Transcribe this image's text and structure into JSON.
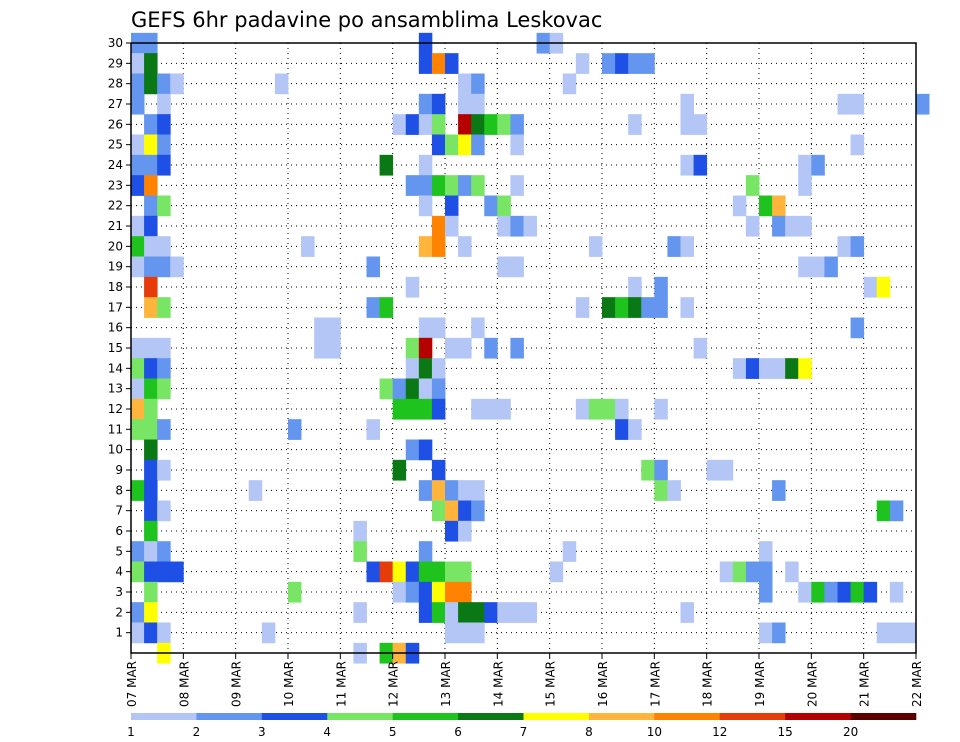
{
  "chart_data": {
    "type": "heatmap",
    "title": "GEFS 6hr padavine po ansamblima Leskovac",
    "x_tick_labels": [
      "07 MAR",
      "08 MAR",
      "09 MAR",
      "10 MAR",
      "11 MAR",
      "12 MAR",
      "13 MAR",
      "14 MAR",
      "15 MAR",
      "16 MAR",
      "17 MAR",
      "18 MAR",
      "19 MAR",
      "20 MAR",
      "21 MAR",
      "22 MAR"
    ],
    "x_range": [
      "07 MAR",
      "22 MAR"
    ],
    "y_tick_labels": [
      "1",
      "2",
      "3",
      "4",
      "5",
      "6",
      "7",
      "8",
      "9",
      "10",
      "11",
      "12",
      "13",
      "14",
      "15",
      "16",
      "17",
      "18",
      "19",
      "20",
      "21",
      "22",
      "23",
      "24",
      "25",
      "26",
      "27",
      "28",
      "29",
      "30"
    ],
    "y_range": [
      0,
      30
    ],
    "steps_per_day": 4,
    "grid": true,
    "colorbar": {
      "placement": "bottom",
      "labels": [
        "1",
        "2",
        "3",
        "4",
        "5",
        "6",
        "7",
        "8",
        "10",
        "12",
        "15",
        "20"
      ],
      "colors": [
        "#b3c6f5",
        "#6496f0",
        "#1e50e6",
        "#78e664",
        "#1ec31e",
        "#0a7814",
        "#ffff00",
        "#ffb43c",
        "#ff8200",
        "#e63c0a",
        "#b40000",
        "#5a0000"
      ]
    },
    "cells": [
      [
        0,
        30,
        2
      ],
      [
        1,
        30,
        2
      ],
      [
        22,
        30,
        3
      ],
      [
        31,
        30,
        2
      ],
      [
        32,
        30,
        1
      ],
      [
        0,
        29,
        1
      ],
      [
        1,
        29,
        6
      ],
      [
        22,
        29,
        3
      ],
      [
        23,
        29,
        9
      ],
      [
        24,
        29,
        3
      ],
      [
        34,
        29,
        1
      ],
      [
        36,
        29,
        2
      ],
      [
        37,
        29,
        3
      ],
      [
        38,
        29,
        2
      ],
      [
        39,
        29,
        2
      ],
      [
        0,
        28,
        2
      ],
      [
        1,
        28,
        6
      ],
      [
        2,
        28,
        2
      ],
      [
        3,
        28,
        1
      ],
      [
        11,
        28,
        1
      ],
      [
        25,
        28,
        1
      ],
      [
        26,
        28,
        2
      ],
      [
        33,
        28,
        1
      ],
      [
        0,
        27,
        2
      ],
      [
        2,
        27,
        1
      ],
      [
        22,
        27,
        2
      ],
      [
        23,
        27,
        3
      ],
      [
        25,
        27,
        1
      ],
      [
        26,
        27,
        1
      ],
      [
        42,
        27,
        1
      ],
      [
        54,
        27,
        1
      ],
      [
        55,
        27,
        1
      ],
      [
        60,
        27,
        2
      ],
      [
        1,
        26,
        2
      ],
      [
        2,
        26,
        3
      ],
      [
        20,
        26,
        1
      ],
      [
        21,
        26,
        3
      ],
      [
        22,
        26,
        1
      ],
      [
        23,
        26,
        4
      ],
      [
        25,
        26,
        11
      ],
      [
        26,
        26,
        6
      ],
      [
        27,
        26,
        5
      ],
      [
        28,
        26,
        4
      ],
      [
        29,
        26,
        2
      ],
      [
        38,
        26,
        1
      ],
      [
        42,
        26,
        1
      ],
      [
        43,
        26,
        1
      ],
      [
        0,
        25,
        1
      ],
      [
        1,
        25,
        7
      ],
      [
        2,
        25,
        2
      ],
      [
        23,
        25,
        3
      ],
      [
        24,
        25,
        4
      ],
      [
        25,
        25,
        7
      ],
      [
        26,
        25,
        2
      ],
      [
        29,
        25,
        1
      ],
      [
        55,
        25,
        1
      ],
      [
        0,
        24,
        2
      ],
      [
        1,
        24,
        2
      ],
      [
        2,
        24,
        3
      ],
      [
        19,
        24,
        6
      ],
      [
        22,
        24,
        1
      ],
      [
        42,
        24,
        1
      ],
      [
        43,
        24,
        3
      ],
      [
        51,
        24,
        1
      ],
      [
        52,
        24,
        2
      ],
      [
        0,
        23,
        3
      ],
      [
        1,
        23,
        9
      ],
      [
        21,
        23,
        2
      ],
      [
        22,
        23,
        2
      ],
      [
        23,
        23,
        5
      ],
      [
        24,
        23,
        4
      ],
      [
        25,
        23,
        2
      ],
      [
        26,
        23,
        4
      ],
      [
        29,
        23,
        1
      ],
      [
        47,
        23,
        4
      ],
      [
        51,
        23,
        1
      ],
      [
        1,
        22,
        2
      ],
      [
        2,
        22,
        4
      ],
      [
        22,
        22,
        1
      ],
      [
        24,
        22,
        3
      ],
      [
        27,
        22,
        2
      ],
      [
        28,
        22,
        4
      ],
      [
        46,
        22,
        1
      ],
      [
        48,
        22,
        5
      ],
      [
        49,
        22,
        8
      ],
      [
        0,
        21,
        1
      ],
      [
        1,
        21,
        3
      ],
      [
        23,
        21,
        9
      ],
      [
        24,
        21,
        1
      ],
      [
        28,
        21,
        1
      ],
      [
        29,
        21,
        2
      ],
      [
        30,
        21,
        1
      ],
      [
        47,
        21,
        1
      ],
      [
        49,
        21,
        2
      ],
      [
        50,
        21,
        1
      ],
      [
        51,
        21,
        1
      ],
      [
        0,
        20,
        5
      ],
      [
        1,
        20,
        1
      ],
      [
        2,
        20,
        1
      ],
      [
        13,
        20,
        1
      ],
      [
        22,
        20,
        8
      ],
      [
        23,
        20,
        9
      ],
      [
        25,
        20,
        1
      ],
      [
        35,
        20,
        1
      ],
      [
        41,
        20,
        2
      ],
      [
        42,
        20,
        1
      ],
      [
        54,
        20,
        1
      ],
      [
        55,
        20,
        2
      ],
      [
        0,
        19,
        1
      ],
      [
        1,
        19,
        2
      ],
      [
        2,
        19,
        2
      ],
      [
        3,
        19,
        1
      ],
      [
        18,
        19,
        2
      ],
      [
        28,
        19,
        1
      ],
      [
        29,
        19,
        1
      ],
      [
        51,
        19,
        1
      ],
      [
        52,
        19,
        1
      ],
      [
        53,
        19,
        2
      ],
      [
        1,
        18,
        10
      ],
      [
        21,
        18,
        1
      ],
      [
        38,
        18,
        1
      ],
      [
        40,
        18,
        2
      ],
      [
        56,
        18,
        1
      ],
      [
        57,
        18,
        7
      ],
      [
        1,
        17,
        8
      ],
      [
        2,
        17,
        4
      ],
      [
        18,
        17,
        2
      ],
      [
        19,
        17,
        5
      ],
      [
        34,
        17,
        1
      ],
      [
        36,
        17,
        6
      ],
      [
        37,
        17,
        5
      ],
      [
        38,
        17,
        6
      ],
      [
        39,
        17,
        2
      ],
      [
        40,
        17,
        2
      ],
      [
        42,
        17,
        1
      ],
      [
        14,
        16,
        1
      ],
      [
        15,
        16,
        1
      ],
      [
        22,
        16,
        1
      ],
      [
        23,
        16,
        1
      ],
      [
        26,
        16,
        1
      ],
      [
        55,
        16,
        2
      ],
      [
        0,
        15,
        1
      ],
      [
        1,
        15,
        1
      ],
      [
        2,
        15,
        1
      ],
      [
        14,
        15,
        1
      ],
      [
        15,
        15,
        1
      ],
      [
        21,
        15,
        4
      ],
      [
        22,
        15,
        11
      ],
      [
        24,
        15,
        1
      ],
      [
        25,
        15,
        1
      ],
      [
        27,
        15,
        2
      ],
      [
        29,
        15,
        2
      ],
      [
        43,
        15,
        1
      ],
      [
        0,
        14,
        4
      ],
      [
        1,
        14,
        3
      ],
      [
        2,
        14,
        2
      ],
      [
        21,
        14,
        1
      ],
      [
        22,
        14,
        6
      ],
      [
        23,
        14,
        1
      ],
      [
        46,
        14,
        1
      ],
      [
        47,
        14,
        3
      ],
      [
        48,
        14,
        1
      ],
      [
        49,
        14,
        1
      ],
      [
        50,
        14,
        6
      ],
      [
        51,
        14,
        7
      ],
      [
        0,
        13,
        1
      ],
      [
        1,
        13,
        5
      ],
      [
        2,
        13,
        4
      ],
      [
        19,
        13,
        4
      ],
      [
        20,
        13,
        2
      ],
      [
        21,
        13,
        6
      ],
      [
        22,
        13,
        1
      ],
      [
        23,
        13,
        2
      ],
      [
        0,
        12,
        8
      ],
      [
        1,
        12,
        4
      ],
      [
        20,
        12,
        5
      ],
      [
        21,
        12,
        5
      ],
      [
        22,
        12,
        5
      ],
      [
        23,
        12,
        3
      ],
      [
        26,
        12,
        1
      ],
      [
        27,
        12,
        1
      ],
      [
        28,
        12,
        1
      ],
      [
        34,
        12,
        1
      ],
      [
        35,
        12,
        4
      ],
      [
        36,
        12,
        4
      ],
      [
        37,
        12,
        1
      ],
      [
        40,
        12,
        1
      ],
      [
        0,
        11,
        4
      ],
      [
        1,
        11,
        4
      ],
      [
        2,
        11,
        2
      ],
      [
        12,
        11,
        2
      ],
      [
        18,
        11,
        1
      ],
      [
        37,
        11,
        3
      ],
      [
        38,
        11,
        1
      ],
      [
        1,
        10,
        6
      ],
      [
        21,
        10,
        2
      ],
      [
        22,
        10,
        3
      ],
      [
        1,
        9,
        3
      ],
      [
        2,
        9,
        1
      ],
      [
        20,
        9,
        6
      ],
      [
        23,
        9,
        3
      ],
      [
        39,
        9,
        4
      ],
      [
        40,
        9,
        2
      ],
      [
        44,
        9,
        1
      ],
      [
        45,
        9,
        1
      ],
      [
        0,
        8,
        5
      ],
      [
        1,
        8,
        3
      ],
      [
        9,
        8,
        1
      ],
      [
        22,
        8,
        2
      ],
      [
        23,
        8,
        8
      ],
      [
        24,
        8,
        2
      ],
      [
        25,
        8,
        1
      ],
      [
        26,
        8,
        1
      ],
      [
        40,
        8,
        4
      ],
      [
        41,
        8,
        1
      ],
      [
        49,
        8,
        2
      ],
      [
        1,
        7,
        3
      ],
      [
        2,
        7,
        1
      ],
      [
        23,
        7,
        4
      ],
      [
        24,
        7,
        8
      ],
      [
        25,
        7,
        3
      ],
      [
        26,
        7,
        2
      ],
      [
        57,
        7,
        5
      ],
      [
        58,
        7,
        2
      ],
      [
        1,
        6,
        5
      ],
      [
        17,
        6,
        1
      ],
      [
        24,
        6,
        3
      ],
      [
        25,
        6,
        1
      ],
      [
        0,
        5,
        2
      ],
      [
        1,
        5,
        1
      ],
      [
        2,
        5,
        2
      ],
      [
        17,
        5,
        4
      ],
      [
        22,
        5,
        2
      ],
      [
        33,
        5,
        1
      ],
      [
        48,
        5,
        1
      ],
      [
        0,
        4,
        4
      ],
      [
        1,
        4,
        3
      ],
      [
        2,
        4,
        3
      ],
      [
        3,
        4,
        3
      ],
      [
        18,
        4,
        3
      ],
      [
        19,
        4,
        10
      ],
      [
        20,
        4,
        7
      ],
      [
        21,
        4,
        3
      ],
      [
        22,
        4,
        5
      ],
      [
        23,
        4,
        5
      ],
      [
        24,
        4,
        4
      ],
      [
        25,
        4,
        4
      ],
      [
        32,
        4,
        1
      ],
      [
        45,
        4,
        1
      ],
      [
        46,
        4,
        4
      ],
      [
        47,
        4,
        2
      ],
      [
        48,
        4,
        2
      ],
      [
        50,
        4,
        1
      ],
      [
        1,
        3,
        4
      ],
      [
        12,
        3,
        4
      ],
      [
        20,
        3,
        1
      ],
      [
        21,
        3,
        2
      ],
      [
        22,
        3,
        3
      ],
      [
        23,
        3,
        7
      ],
      [
        24,
        3,
        9
      ],
      [
        25,
        3,
        9
      ],
      [
        51,
        3,
        1
      ],
      [
        52,
        3,
        5
      ],
      [
        53,
        3,
        2
      ],
      [
        54,
        3,
        3
      ],
      [
        55,
        3,
        5
      ],
      [
        56,
        3,
        3
      ],
      [
        58,
        3,
        1
      ],
      [
        48,
        3,
        2
      ],
      [
        0,
        2,
        2
      ],
      [
        1,
        2,
        7
      ],
      [
        17,
        2,
        1
      ],
      [
        22,
        2,
        3
      ],
      [
        23,
        2,
        5
      ],
      [
        24,
        2,
        1
      ],
      [
        25,
        2,
        6
      ],
      [
        26,
        2,
        6
      ],
      [
        27,
        2,
        3
      ],
      [
        28,
        2,
        1
      ],
      [
        29,
        2,
        1
      ],
      [
        30,
        2,
        1
      ],
      [
        42,
        2,
        1
      ],
      [
        0,
        1,
        1
      ],
      [
        1,
        1,
        3
      ],
      [
        2,
        1,
        1
      ],
      [
        10,
        1,
        1
      ],
      [
        24,
        1,
        1
      ],
      [
        25,
        1,
        1
      ],
      [
        26,
        1,
        1
      ],
      [
        48,
        1,
        1
      ],
      [
        49,
        1,
        2
      ],
      [
        57,
        1,
        1
      ],
      [
        58,
        1,
        1
      ],
      [
        59,
        1,
        1
      ],
      [
        2,
        0,
        7
      ],
      [
        17,
        0,
        1
      ],
      [
        19,
        0,
        5
      ],
      [
        20,
        0,
        8
      ],
      [
        21,
        0,
        3
      ]
    ]
  }
}
